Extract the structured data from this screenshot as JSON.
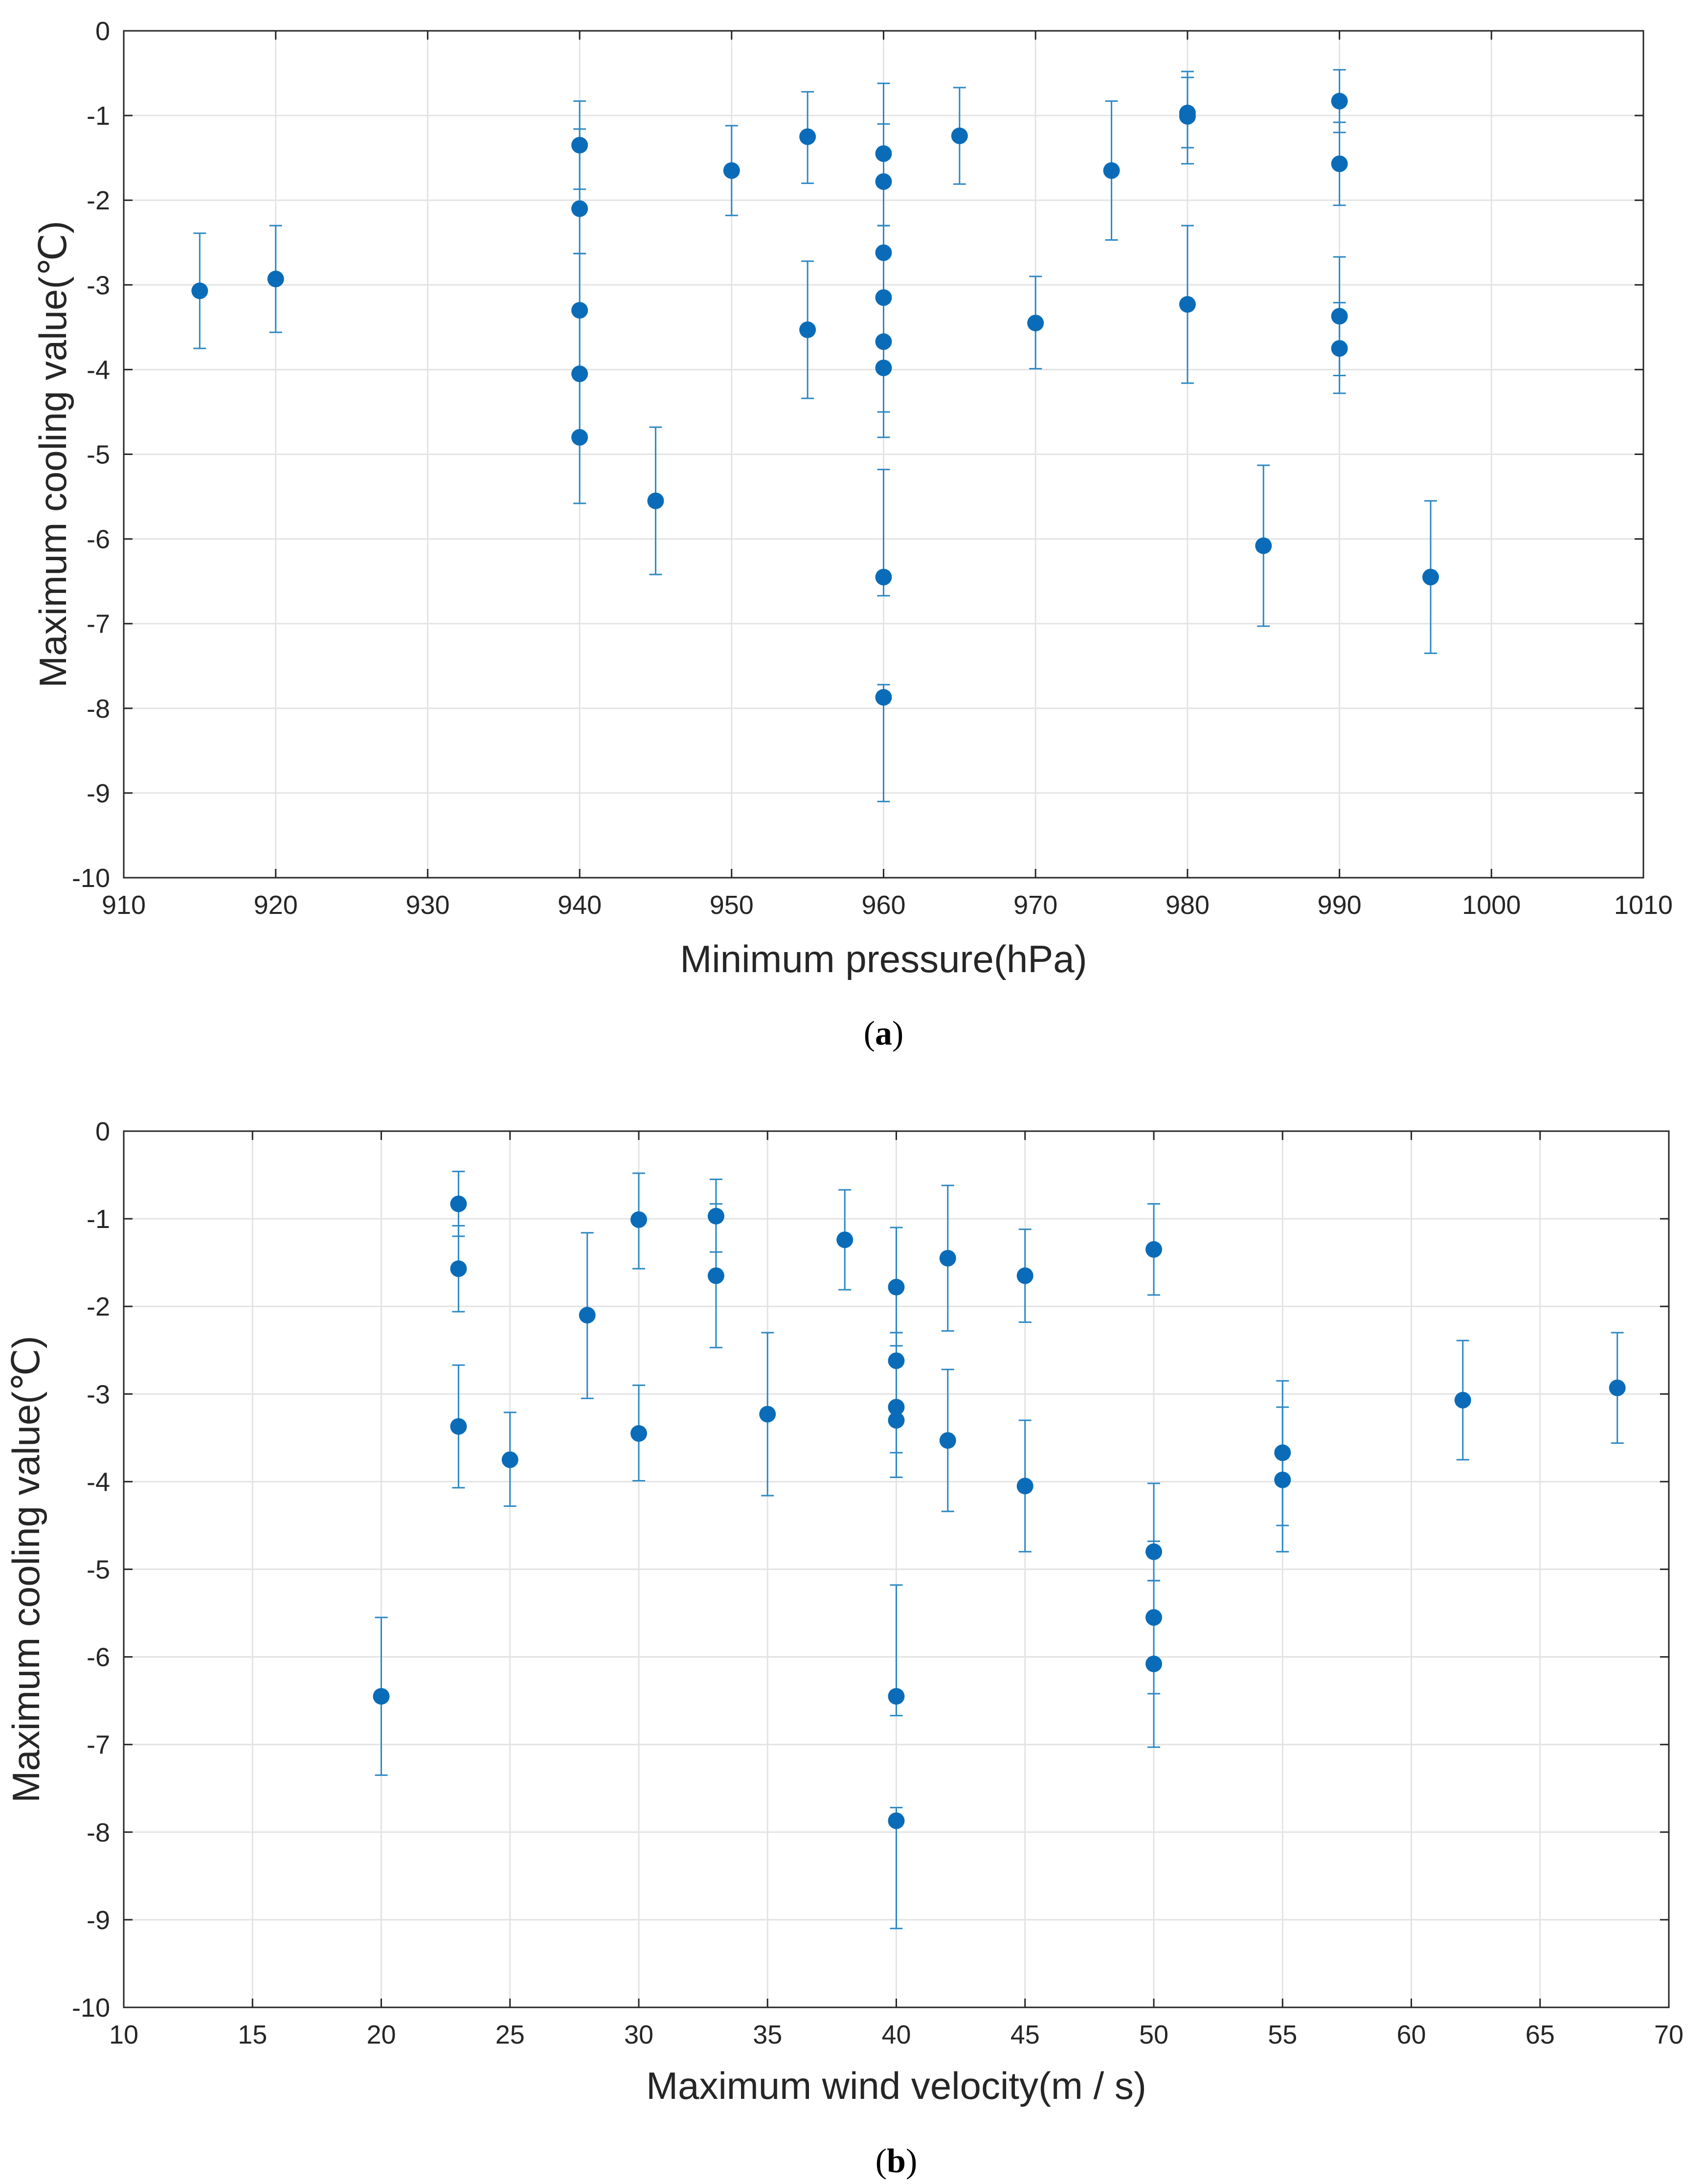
{
  "chart_data": [
    {
      "type": "scatter",
      "panel_caption": "a",
      "title": "",
      "xlabel": "Minimum pressure(hPa)",
      "ylabel": "Maximum cooling value(℃)",
      "xlim": [
        910,
        1010
      ],
      "ylim": [
        -10,
        0
      ],
      "xticks": [
        910,
        920,
        930,
        940,
        950,
        960,
        970,
        980,
        990,
        1000,
        1010
      ],
      "yticks": [
        0,
        -1,
        -2,
        -3,
        -4,
        -5,
        -6,
        -7,
        -8,
        -9,
        -10
      ],
      "grid": true,
      "marker_color": "#0a6cb8",
      "errorbar_color": "#2b88c4",
      "points": [
        {
          "x": 915,
          "y": -3.07,
          "lo": -3.75,
          "hi": -2.39
        },
        {
          "x": 920,
          "y": -2.93,
          "lo": -3.56,
          "hi": -2.3
        },
        {
          "x": 940,
          "y": -1.35,
          "lo": -1.87,
          "hi": -0.83
        },
        {
          "x": 940,
          "y": -2.1,
          "lo": -2.63,
          "hi": -1.16
        },
        {
          "x": 940,
          "y": -3.3,
          "lo": -4.05,
          "hi": -2.63
        },
        {
          "x": 940,
          "y": -4.05,
          "lo": -4.8,
          "hi": -3.3
        },
        {
          "x": 940,
          "y": -4.8,
          "lo": -5.58,
          "hi": -4.05
        },
        {
          "x": 945,
          "y": -5.55,
          "lo": -6.42,
          "hi": -4.68
        },
        {
          "x": 950,
          "y": -1.65,
          "lo": -2.18,
          "hi": -1.12
        },
        {
          "x": 955,
          "y": -1.25,
          "lo": -1.8,
          "hi": -0.72
        },
        {
          "x": 955,
          "y": -3.53,
          "lo": -4.34,
          "hi": -2.72
        },
        {
          "x": 960,
          "y": -1.45,
          "lo": -2.3,
          "hi": -0.62
        },
        {
          "x": 960,
          "y": -1.78,
          "lo": -2.3,
          "hi": -1.1
        },
        {
          "x": 960,
          "y": -2.62,
          "lo": -3.15,
          "hi": -2.3
        },
        {
          "x": 960,
          "y": -3.15,
          "lo": -3.67,
          "hi": -2.62
        },
        {
          "x": 960,
          "y": -3.67,
          "lo": -4.5,
          "hi": -3.15
        },
        {
          "x": 960,
          "y": -3.98,
          "lo": -4.8,
          "hi": -3.67
        },
        {
          "x": 960,
          "y": -6.45,
          "lo": -6.67,
          "hi": -5.18
        },
        {
          "x": 960,
          "y": -7.87,
          "lo": -9.1,
          "hi": -7.72
        },
        {
          "x": 965,
          "y": -1.24,
          "lo": -1.81,
          "hi": -0.67
        },
        {
          "x": 970,
          "y": -3.45,
          "lo": -3.99,
          "hi": -2.9
        },
        {
          "x": 975,
          "y": -1.65,
          "lo": -2.47,
          "hi": -0.83
        },
        {
          "x": 980,
          "y": -0.97,
          "lo": -1.38,
          "hi": -0.48
        },
        {
          "x": 980,
          "y": -1.01,
          "lo": -1.57,
          "hi": -0.55
        },
        {
          "x": 980,
          "y": -3.23,
          "lo": -4.16,
          "hi": -2.3
        },
        {
          "x": 985,
          "y": -6.08,
          "lo": -7.03,
          "hi": -5.13
        },
        {
          "x": 990,
          "y": -0.83,
          "lo": -1.2,
          "hi": -0.46
        },
        {
          "x": 990,
          "y": -1.57,
          "lo": -2.06,
          "hi": -1.08
        },
        {
          "x": 990,
          "y": -3.37,
          "lo": -4.07,
          "hi": -2.67
        },
        {
          "x": 990,
          "y": -3.75,
          "lo": -4.28,
          "hi": -3.21
        },
        {
          "x": 996,
          "y": -6.45,
          "lo": -7.35,
          "hi": -5.55
        }
      ]
    },
    {
      "type": "scatter",
      "panel_caption": "b",
      "title": "",
      "xlabel": "Maximum wind velocity(m / s)",
      "ylabel": "Maximum cooling value(℃)",
      "xlim": [
        10,
        70
      ],
      "ylim": [
        -10,
        0
      ],
      "xticks": [
        10,
        15,
        20,
        25,
        30,
        35,
        40,
        45,
        50,
        55,
        60,
        65,
        70
      ],
      "yticks": [
        0,
        -1,
        -2,
        -3,
        -4,
        -5,
        -6,
        -7,
        -8,
        -9,
        -10
      ],
      "grid": true,
      "marker_color": "#0a6cb8",
      "errorbar_color": "#2b88c4",
      "points": [
        {
          "x": 20,
          "y": -6.45,
          "lo": -7.35,
          "hi": -5.55
        },
        {
          "x": 23,
          "y": -0.83,
          "lo": -1.2,
          "hi": -0.46
        },
        {
          "x": 23,
          "y": -1.57,
          "lo": -2.06,
          "hi": -1.08
        },
        {
          "x": 23,
          "y": -3.37,
          "lo": -4.07,
          "hi": -2.67
        },
        {
          "x": 25,
          "y": -3.75,
          "lo": -4.28,
          "hi": -3.21
        },
        {
          "x": 28,
          "y": -2.1,
          "lo": -3.05,
          "hi": -1.16
        },
        {
          "x": 30,
          "y": -1.01,
          "lo": -1.57,
          "hi": -0.48
        },
        {
          "x": 30,
          "y": -3.45,
          "lo": -3.99,
          "hi": -2.9
        },
        {
          "x": 33,
          "y": -0.97,
          "lo": -1.38,
          "hi": -0.55
        },
        {
          "x": 33,
          "y": -1.65,
          "lo": -2.47,
          "hi": -0.83
        },
        {
          "x": 35,
          "y": -3.23,
          "lo": -4.16,
          "hi": -2.3
        },
        {
          "x": 38,
          "y": -1.24,
          "lo": -1.81,
          "hi": -0.67
        },
        {
          "x": 40,
          "y": -1.78,
          "lo": -2.3,
          "hi": -1.1
        },
        {
          "x": 40,
          "y": -2.62,
          "lo": -3.15,
          "hi": -2.3
        },
        {
          "x": 40,
          "y": -3.15,
          "lo": -3.67,
          "hi": -2.62
        },
        {
          "x": 40,
          "y": -3.3,
          "lo": -3.95,
          "hi": -2.45
        },
        {
          "x": 40,
          "y": -6.45,
          "lo": -6.67,
          "hi": -5.18
        },
        {
          "x": 40,
          "y": -7.87,
          "lo": -9.1,
          "hi": -7.72
        },
        {
          "x": 42,
          "y": -1.45,
          "lo": -2.28,
          "hi": -0.62
        },
        {
          "x": 42,
          "y": -3.53,
          "lo": -4.34,
          "hi": -2.72
        },
        {
          "x": 45,
          "y": -1.65,
          "lo": -2.18,
          "hi": -1.12
        },
        {
          "x": 45,
          "y": -4.05,
          "lo": -4.8,
          "hi": -3.3
        },
        {
          "x": 50,
          "y": -1.35,
          "lo": -1.87,
          "hi": -0.83
        },
        {
          "x": 50,
          "y": -4.8,
          "lo": -5.13,
          "hi": -4.02
        },
        {
          "x": 50,
          "y": -5.55,
          "lo": -6.42,
          "hi": -4.68
        },
        {
          "x": 50,
          "y": -6.08,
          "lo": -7.03,
          "hi": -5.13
        },
        {
          "x": 55,
          "y": -3.67,
          "lo": -4.5,
          "hi": -2.85
        },
        {
          "x": 55,
          "y": -3.98,
          "lo": -4.8,
          "hi": -3.15
        },
        {
          "x": 62,
          "y": -3.07,
          "lo": -3.75,
          "hi": -2.39
        },
        {
          "x": 68,
          "y": -2.93,
          "lo": -3.56,
          "hi": -2.3
        }
      ]
    }
  ]
}
